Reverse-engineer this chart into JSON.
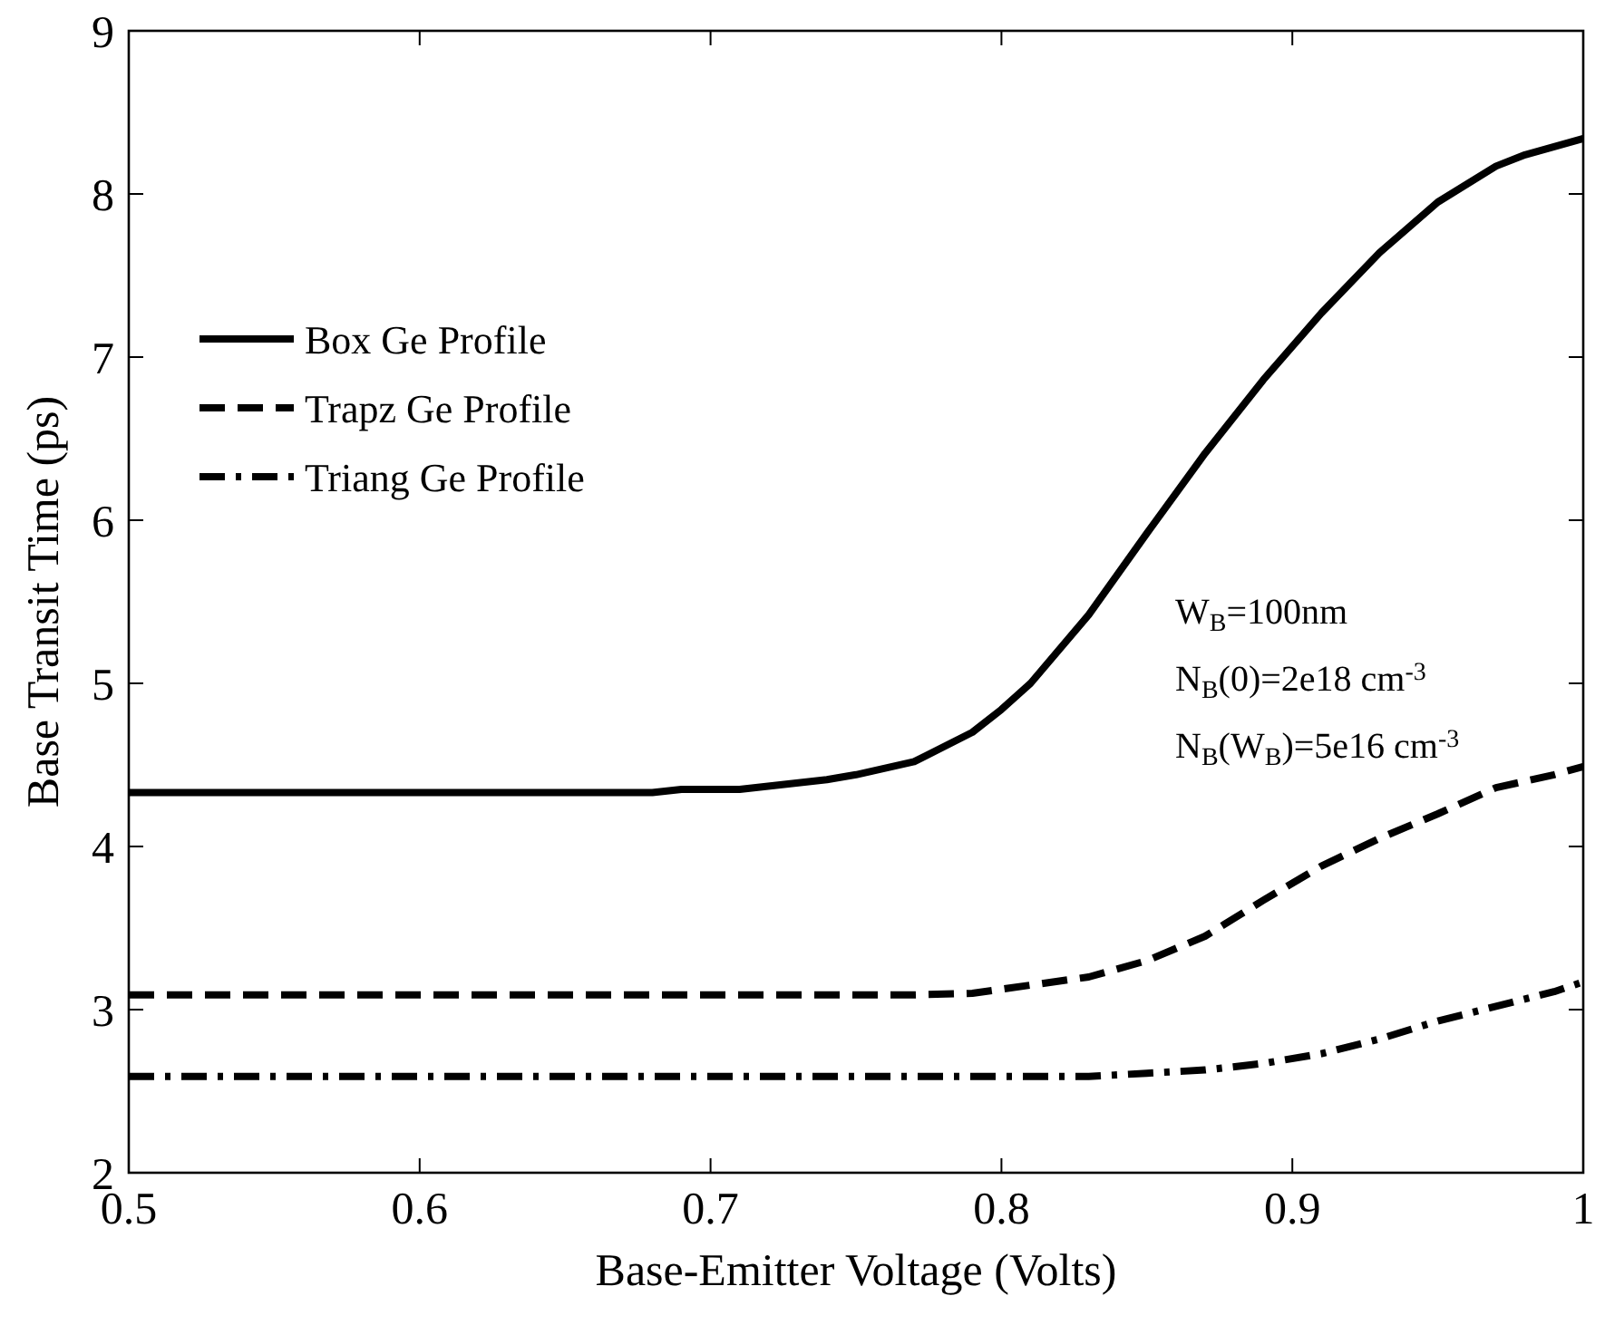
{
  "chart_data": {
    "type": "line",
    "xlabel": "Base-Emitter Voltage (Volts)",
    "ylabel": "Base Transit Time (ps)",
    "xlim": [
      0.5,
      1
    ],
    "xticks": [
      0.5,
      0.6,
      0.7,
      0.8,
      0.9,
      1
    ],
    "ylim": [
      2,
      9
    ],
    "yticks": [
      2,
      3,
      4,
      5,
      6,
      7,
      8,
      9
    ],
    "grid": false,
    "legend": "top left",
    "marker": "none",
    "annotations": [
      "W$_{B}$=100nm",
      "N$_{B}$(0)=2e18 cm$^{-3}$",
      "N$_{B}$(W$_{B}$)=5e16 cm$^{-3}$"
    ],
    "series": [
      {
        "name": "Box Ge Profile",
        "color": "#000000",
        "line_style": "solid",
        "x": [
          0.5,
          0.68,
          0.69,
          0.71,
          0.74,
          0.75,
          0.77,
          0.79,
          0.8,
          0.81,
          0.83,
          0.85,
          0.87,
          0.89,
          0.91,
          0.93,
          0.95,
          0.97,
          0.98,
          1.0
        ],
        "values": [
          4.33,
          4.33,
          4.35,
          4.35,
          4.41,
          4.44,
          4.52,
          4.7,
          4.84,
          5.0,
          5.42,
          5.92,
          6.41,
          6.86,
          7.27,
          7.64,
          7.95,
          8.17,
          8.24,
          8.34
        ]
      },
      {
        "name": "Trapz Ge Profile",
        "color": "#000000",
        "line_style": "dashed",
        "x": [
          0.5,
          0.77,
          0.79,
          0.81,
          0.83,
          0.85,
          0.87,
          0.89,
          0.91,
          0.93,
          0.95,
          0.97,
          0.99,
          1.0
        ],
        "values": [
          3.09,
          3.09,
          3.1,
          3.15,
          3.2,
          3.3,
          3.45,
          3.67,
          3.88,
          4.05,
          4.2,
          4.36,
          4.44,
          4.49
        ]
      },
      {
        "name": "Triang Ge Profile",
        "color": "#000000",
        "line_style": "dashdot",
        "x": [
          0.5,
          0.83,
          0.85,
          0.87,
          0.89,
          0.91,
          0.93,
          0.95,
          0.97,
          0.99,
          1.0
        ],
        "values": [
          2.59,
          2.59,
          2.61,
          2.63,
          2.67,
          2.73,
          2.82,
          2.93,
          3.02,
          3.11,
          3.17
        ]
      }
    ]
  }
}
